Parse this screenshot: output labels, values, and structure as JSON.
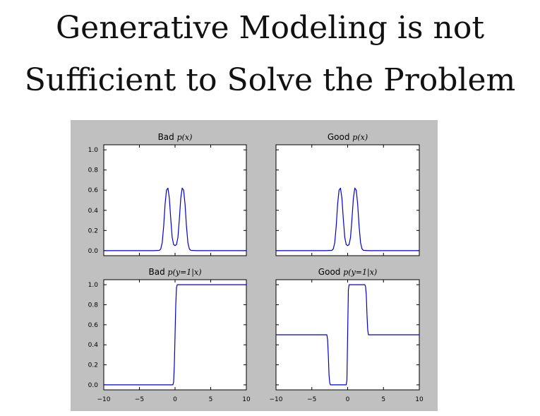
{
  "slide": {
    "title_line1": "Generative Modeling is not",
    "title_line2": "Sufficient to Solve the Problem"
  },
  "chart_data": [
    {
      "type": "line",
      "title_prefix": "Bad",
      "title_math": "p(x)",
      "xlim": [
        -10,
        10
      ],
      "ylim": [
        -0.05,
        1.05
      ],
      "xticks": [
        -10,
        -5,
        0,
        5,
        10
      ],
      "yticks": [
        0.0,
        0.2,
        0.4,
        0.6,
        0.8,
        1.0
      ],
      "ytick_labels": [
        "0.0",
        "0.2",
        "0.4",
        "0.6",
        "0.8",
        "1.0"
      ],
      "grid": false,
      "color": "#0000cc",
      "series": [
        {
          "x": [
            -10,
            -3,
            -2.2,
            -2,
            -1.8,
            -1.6,
            -1.4,
            -1.2,
            -1,
            -0.8,
            -0.6,
            -0.4,
            -0.2,
            0,
            0.2,
            0.4,
            0.6,
            0.8,
            1,
            1.2,
            1.4,
            1.6,
            1.8,
            2,
            2.2,
            3,
            10
          ],
          "y": [
            0,
            0,
            0.003,
            0.018,
            0.08,
            0.24,
            0.46,
            0.6,
            0.62,
            0.52,
            0.31,
            0.13,
            0.06,
            0.05,
            0.06,
            0.13,
            0.31,
            0.52,
            0.62,
            0.6,
            0.46,
            0.24,
            0.08,
            0.018,
            0.003,
            0,
            0
          ]
        }
      ]
    },
    {
      "type": "line",
      "title_prefix": "Good",
      "title_math": "p(x)",
      "xlim": [
        -10,
        10
      ],
      "ylim": [
        -0.05,
        1.05
      ],
      "xticks": [
        -10,
        -5,
        0,
        5,
        10
      ],
      "yticks": [
        0.0,
        0.2,
        0.4,
        0.6,
        0.8,
        1.0
      ],
      "grid": false,
      "color": "#0000cc",
      "series": [
        {
          "x": [
            -10,
            -3,
            -2.2,
            -2,
            -1.8,
            -1.6,
            -1.4,
            -1.2,
            -1,
            -0.8,
            -0.6,
            -0.4,
            -0.2,
            0,
            0.2,
            0.4,
            0.6,
            0.8,
            1,
            1.2,
            1.4,
            1.6,
            1.8,
            2,
            2.2,
            3,
            10
          ],
          "y": [
            0,
            0,
            0.003,
            0.018,
            0.08,
            0.24,
            0.46,
            0.6,
            0.62,
            0.52,
            0.31,
            0.13,
            0.06,
            0.05,
            0.06,
            0.13,
            0.31,
            0.52,
            0.62,
            0.6,
            0.46,
            0.24,
            0.08,
            0.018,
            0.003,
            0,
            0
          ]
        }
      ]
    },
    {
      "type": "line",
      "title_prefix": "Bad",
      "title_math": "p(y=1|x)",
      "xlim": [
        -10,
        10
      ],
      "ylim": [
        -0.05,
        1.05
      ],
      "xticks": [
        -10,
        -5,
        0,
        5,
        10
      ],
      "xtick_labels": [
        "−10",
        "−5",
        "0",
        "5",
        "10"
      ],
      "yticks": [
        0.0,
        0.2,
        0.4,
        0.6,
        0.8,
        1.0
      ],
      "ytick_labels": [
        "0.0",
        "0.2",
        "0.4",
        "0.6",
        "0.8",
        "1.0"
      ],
      "grid": false,
      "color": "#0000cc",
      "series": [
        {
          "x": [
            -10,
            -0.3,
            -0.2,
            -0.1,
            0,
            0.1,
            0.2,
            0.3,
            10
          ],
          "y": [
            0,
            0,
            0.03,
            0.2,
            0.5,
            0.8,
            0.97,
            1,
            1
          ]
        }
      ]
    },
    {
      "type": "line",
      "title_prefix": "Good",
      "title_math": "p(y=1|x)",
      "xlim": [
        -10,
        10
      ],
      "ylim": [
        -0.05,
        1.05
      ],
      "xticks": [
        -10,
        -5,
        0,
        5,
        10
      ],
      "xtick_labels": [
        "−10",
        "−5",
        "0",
        "5",
        "10"
      ],
      "yticks": [
        0.0,
        0.2,
        0.4,
        0.6,
        0.8,
        1.0
      ],
      "grid": false,
      "color": "#0000cc",
      "series": [
        {
          "x": [
            -10,
            -2.9,
            -2.8,
            -2.7,
            -2.6,
            -2.5,
            -2.4,
            -0.2,
            -0.1,
            0,
            0.1,
            0.2,
            2.4,
            2.5,
            2.6,
            2.7,
            2.8,
            2.9,
            10
          ],
          "y": [
            0.5,
            0.5,
            0.45,
            0.3,
            0.1,
            0.02,
            0,
            0,
            0.05,
            0.5,
            0.95,
            1,
            1,
            0.98,
            0.9,
            0.7,
            0.55,
            0.5,
            0.5
          ]
        }
      ]
    }
  ]
}
